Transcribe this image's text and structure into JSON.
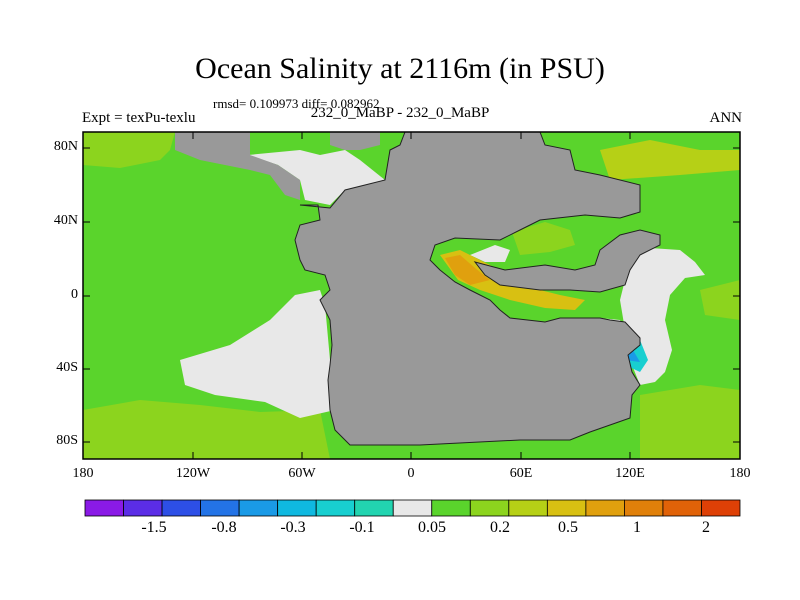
{
  "title": "Ocean Salinity at 2116m (in PSU)",
  "subtitle": "rmsd= 0.109973 diff= 0.082962",
  "left_label": "Expt = texPu-texlu",
  "center_label": "232_0_MaBP - 232_0_MaBP",
  "right_label": "ANN",
  "lat_labels": [
    "80N",
    "40N",
    "0",
    "40S",
    "80S"
  ],
  "lon_labels": [
    "180",
    "120W",
    "60W",
    "0",
    "60E",
    "120E",
    "180"
  ],
  "colorbar": {
    "colors": [
      "#8a1ae6",
      "#5b2de6",
      "#2d4fe6",
      "#2373e6",
      "#1a9ae6",
      "#0fb9e0",
      "#18cfd0",
      "#22d4b0",
      "#e8e8e8",
      "#5ad42c",
      "#8cd41e",
      "#b6d016",
      "#d8c012",
      "#e0a00e",
      "#e0800a",
      "#e06208",
      "#de4006"
    ],
    "labels": [
      "-1.5",
      "-0.8",
      "-0.3",
      "-0.1",
      "0.05",
      "0.2",
      "0.5",
      "1",
      "2"
    ]
  },
  "colors": {
    "land": "#999999",
    "ocean_main": "#5ad42c",
    "ocean_light": "#8cd41e",
    "near_zero": "#e8e8e8"
  }
}
